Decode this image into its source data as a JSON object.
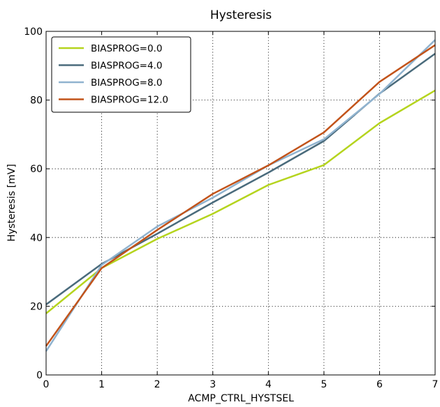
{
  "chart_data": {
    "type": "line",
    "title": "Hysteresis",
    "xlabel": "ACMP_CTRL_HYSTSEL",
    "ylabel": "Hysteresis [mV]",
    "xlim": [
      0,
      7
    ],
    "ylim": [
      0,
      100
    ],
    "x": [
      0,
      1,
      2,
      3,
      4,
      5,
      6,
      7
    ],
    "x_ticks": [
      "0",
      "1",
      "2",
      "3",
      "4",
      "5",
      "6",
      "7"
    ],
    "y_ticks": [
      "0",
      "20",
      "40",
      "60",
      "80",
      "100"
    ],
    "grid": true,
    "legend_position": "top-left",
    "series": [
      {
        "name": "BIASPROG=0.0",
        "color": "#b5d41e",
        "values": [
          17.9,
          31.1,
          39.6,
          46.9,
          55.3,
          61.1,
          73.3,
          82.8
        ]
      },
      {
        "name": "BIASPROG=4.0",
        "color": "#4a6b7c",
        "values": [
          20.5,
          32.3,
          41.1,
          50.2,
          58.9,
          68.1,
          81.9,
          93.5
        ]
      },
      {
        "name": "BIASPROG=8.0",
        "color": "#90b3cf",
        "values": [
          6.9,
          32.0,
          43.2,
          51.6,
          61.0,
          68.6,
          81.8,
          97.5
        ]
      },
      {
        "name": "BIASPROG=12.0",
        "color": "#c2531a",
        "values": [
          8.4,
          31.1,
          42.2,
          52.7,
          61.0,
          70.6,
          85.3,
          96.0
        ]
      }
    ]
  }
}
